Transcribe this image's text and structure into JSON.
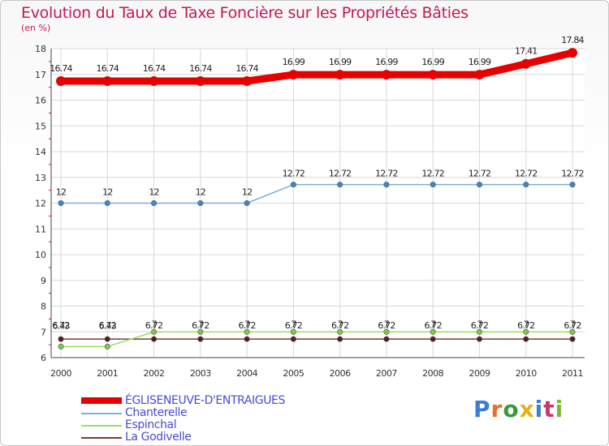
{
  "title": "Evolution du Taux de Taxe Foncière sur les Propriétés Bâties",
  "unit": "(en %)",
  "logo": {
    "text": "Proxiti",
    "colors": [
      "#3a7fd0",
      "#e8702a",
      "#3a9a3a",
      "#e2b31a",
      "#3a7fd0",
      "#d2336b",
      "#7ab83a"
    ]
  },
  "chart_data": {
    "type": "line",
    "title": "Evolution du Taux de Taxe Foncière sur les Propriétés Bâties",
    "ylabel": "(en %)",
    "xlabel": "",
    "ylim": [
      6,
      18
    ],
    "yticks": [
      "6",
      "7",
      "8",
      "9",
      "10",
      "11",
      "12",
      "13",
      "14",
      "15",
      "16",
      "17",
      "18"
    ],
    "categories": [
      "2000",
      "2001",
      "2002",
      "2003",
      "2004",
      "2005",
      "2006",
      "2007",
      "2008",
      "2009",
      "2010",
      "2011"
    ],
    "grid": true,
    "series": [
      {
        "name": "ÉGLISENEUVE-D'ENTRAIGUES",
        "color": "#e60000",
        "marker": "#e60000",
        "emphasis": true,
        "values": [
          16.74,
          16.74,
          16.74,
          16.74,
          16.74,
          16.99,
          16.99,
          16.99,
          16.99,
          16.99,
          17.41,
          17.84
        ],
        "labels": [
          "16.74",
          "16.74",
          "16.74",
          "16.74",
          "16.74",
          "16.99",
          "16.99",
          "16.99",
          "16.99",
          "16.99",
          "17.41",
          "17.84"
        ]
      },
      {
        "name": "Chanterelle",
        "color": "#7ab0da",
        "marker": "#3a8ad0",
        "emphasis": false,
        "values": [
          12,
          12,
          12,
          12,
          12,
          12.72,
          12.72,
          12.72,
          12.72,
          12.72,
          12.72,
          12.72
        ],
        "labels": [
          "12",
          "12",
          "12",
          "12",
          "12",
          "12.72",
          "12.72",
          "12.72",
          "12.72",
          "12.72",
          "12.72",
          "12.72"
        ]
      },
      {
        "name": "Espinchal",
        "color": "#99e066",
        "marker": "#7acc44",
        "emphasis": false,
        "values": [
          6.43,
          6.43,
          7,
          7,
          7,
          7,
          7,
          7,
          7,
          7,
          7,
          7
        ],
        "labels": [
          "6.43",
          "6.43",
          "7",
          "7",
          "7",
          "7",
          "7",
          "7",
          "7",
          "7",
          "7",
          "7"
        ]
      },
      {
        "name": "La Godivelle",
        "color": "#7a3a3a",
        "marker": "#5a1a1a",
        "emphasis": false,
        "values": [
          6.72,
          6.72,
          6.72,
          6.72,
          6.72,
          6.72,
          6.72,
          6.72,
          6.72,
          6.72,
          6.72,
          6.72
        ],
        "labels": [
          "6.72",
          "6.72",
          "6.72",
          "6.72",
          "6.72",
          "6.72",
          "6.72",
          "6.72",
          "6.72",
          "6.72",
          "6.72",
          "6.72"
        ]
      }
    ],
    "legend": "bottom-left"
  }
}
